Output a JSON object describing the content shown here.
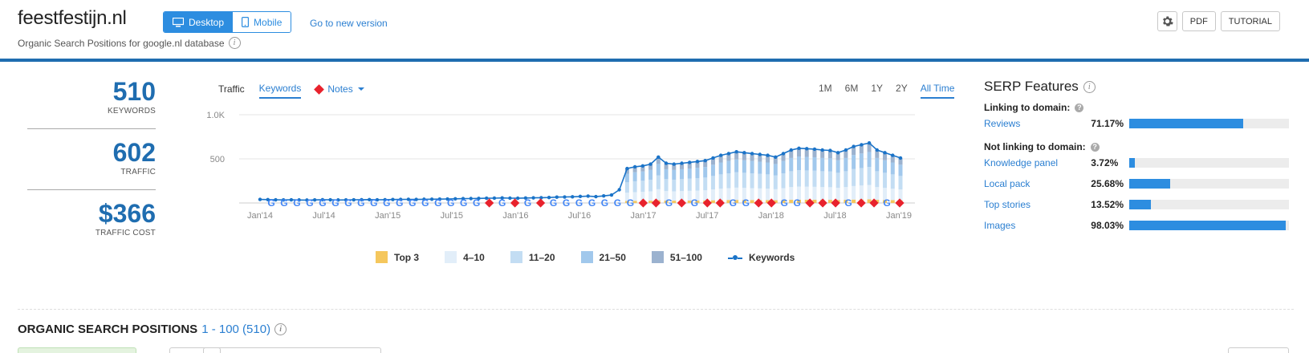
{
  "header": {
    "domain": "feestfestijn.nl",
    "subtitle": "Organic Search Positions for google.nl database",
    "device_desktop": "Desktop",
    "device_mobile": "Mobile",
    "new_version_link": "Go to new version",
    "pdf_label": "PDF",
    "tutorial_label": "TUTORIAL"
  },
  "metrics": [
    {
      "value": "510",
      "label": "KEYWORDS"
    },
    {
      "value": "602",
      "label": "TRAFFIC"
    },
    {
      "value": "$366",
      "label": "TRAFFIC COST"
    }
  ],
  "chart_controls": {
    "tabs": [
      "Traffic",
      "Keywords"
    ],
    "active_tab": "Keywords",
    "notes_label": "Notes",
    "ranges": [
      "1M",
      "6M",
      "1Y",
      "2Y",
      "All Time"
    ],
    "active_range": "All Time"
  },
  "chart_data": {
    "type": "bar",
    "y_ticks": [
      "1.0K",
      "500"
    ],
    "ylim": [
      0,
      1000
    ],
    "x_tick_labels": [
      "Jan'14",
      "Jul'14",
      "Jan'15",
      "Jul'15",
      "Jan'16",
      "Jul'16",
      "Jan'17",
      "Jul'17",
      "Jan'18",
      "Jul'18",
      "Jan'19"
    ],
    "legend": [
      "Top 3",
      "4–10",
      "11–20",
      "21–50",
      "51–100",
      "Keywords"
    ],
    "colors": {
      "Top 3": "#f5c75d",
      "4–10": "#e2eef9",
      "11–20": "#c3ddf3",
      "21–50": "#a1c8ec",
      "51–100": "#9bb2cf",
      "Keywords": "#1a73c8"
    },
    "keywords_line": [
      40,
      38,
      36,
      35,
      36,
      34,
      33,
      35,
      37,
      36,
      34,
      35,
      36,
      37,
      38,
      36,
      37,
      39,
      40,
      41,
      40,
      42,
      43,
      44,
      45,
      47,
      49,
      50,
      52,
      54,
      55,
      57,
      55,
      54,
      56,
      58,
      60,
      62,
      66,
      68,
      70,
      74,
      78,
      72,
      80,
      90,
      150,
      390,
      410,
      420,
      440,
      520,
      450,
      440,
      450,
      460,
      470,
      480,
      510,
      540,
      560,
      580,
      570,
      560,
      550,
      540,
      520,
      560,
      600,
      620,
      615,
      610,
      600,
      595,
      570,
      600,
      640,
      660,
      680,
      600,
      570,
      540,
      510
    ],
    "notes": [
      "google",
      "google",
      "google",
      "google",
      "google",
      "google",
      "google",
      "google",
      "google",
      "google",
      "google",
      "google",
      "google",
      "google",
      "google",
      "google",
      "google",
      "diamond",
      "google",
      "diamond",
      "google",
      "diamond",
      "google",
      "google",
      "google",
      "google",
      "google",
      "google",
      "google",
      "diamond",
      "diamond",
      "google",
      "diamond",
      "google",
      "diamond",
      "diamond",
      "google",
      "google",
      "diamond",
      "diamond",
      "google",
      "google",
      "diamond",
      "diamond",
      "diamond",
      "google",
      "diamond",
      "diamond",
      "google",
      "diamond"
    ]
  },
  "serp": {
    "title": "SERP Features",
    "linking_label": "Linking to domain:",
    "not_linking_label": "Not linking to domain:",
    "linking": [
      {
        "name": "Reviews",
        "pct": "71.17%",
        "value": 0.7117
      }
    ],
    "not_linking": [
      {
        "name": "Knowledge panel",
        "pct": "3.72%",
        "value": 0.0372
      },
      {
        "name": "Local pack",
        "pct": "25.68%",
        "value": 0.2568
      },
      {
        "name": "Top stories",
        "pct": "13.52%",
        "value": 0.1352
      },
      {
        "name": "Images",
        "pct": "98.03%",
        "value": 0.9803
      }
    ]
  },
  "organic": {
    "title": "ORGANIC SEARCH POSITIONS",
    "range": "1 - 100 (510)"
  }
}
